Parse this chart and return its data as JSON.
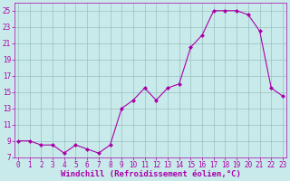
{
  "x": [
    0,
    1,
    2,
    3,
    4,
    5,
    6,
    7,
    8,
    9,
    10,
    11,
    12,
    13,
    14,
    15,
    16,
    17,
    18,
    19,
    20,
    21,
    22,
    23
  ],
  "y": [
    9,
    9,
    8.5,
    8.5,
    7.5,
    8.5,
    8,
    7.5,
    8.5,
    13,
    14,
    15.5,
    14,
    15.5,
    16,
    20.5,
    22,
    25,
    25,
    25,
    24.5,
    22.5,
    15.5,
    14.5
  ],
  "line_color": "#aa00aa",
  "marker": "D",
  "marker_size": 2,
  "bg_color": "#c8eaea",
  "grid_color": "#9bbfbf",
  "xlabel": "Windchill (Refroidissement éolien,°C)",
  "xlabel_color": "#aa00aa",
  "ylim": [
    7,
    26
  ],
  "yticks": [
    7,
    9,
    11,
    13,
    15,
    17,
    19,
    21,
    23,
    25
  ],
  "xticks": [
    0,
    1,
    2,
    3,
    4,
    5,
    6,
    7,
    8,
    9,
    10,
    11,
    12,
    13,
    14,
    15,
    16,
    17,
    18,
    19,
    20,
    21,
    22,
    23
  ],
  "tick_color": "#aa00aa",
  "tick_fontsize": 5.5,
  "xlabel_fontsize": 6.5,
  "xlim": [
    -0.3,
    23.3
  ]
}
